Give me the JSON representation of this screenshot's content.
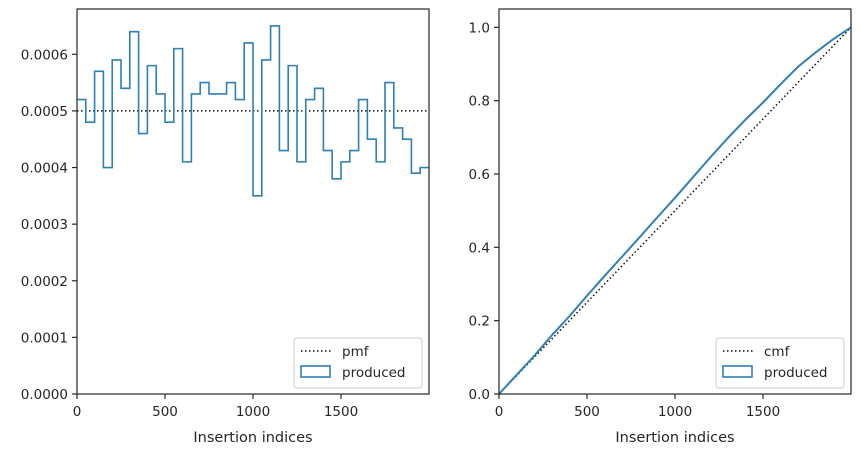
{
  "chart_data": [
    {
      "type": "step",
      "xlabel": "Insertion indices",
      "ylabel": "",
      "xlim": [
        0,
        2000
      ],
      "ylim": [
        0,
        0.00068
      ],
      "x_ticks": [
        0,
        500,
        1000,
        1500
      ],
      "y_ticks": [
        0,
        0.0001,
        0.0002,
        0.0003,
        0.0004,
        0.0005,
        0.0006
      ],
      "y_tick_labels": [
        "0.0000",
        "0.0001",
        "0.0002",
        "0.0003",
        "0.0004",
        "0.0005",
        "0.0006"
      ],
      "legend_position": "lower-right",
      "grid": false,
      "series": [
        {
          "name": "pmf",
          "kind": "hline",
          "y": 0.0005,
          "color": "#111111",
          "style": "dotted"
        },
        {
          "name": "produced",
          "kind": "histogram-step",
          "color": "#2f7fb8",
          "bin_edges": [
            0,
            50,
            100,
            150,
            200,
            250,
            300,
            350,
            400,
            450,
            500,
            550,
            600,
            650,
            700,
            750,
            800,
            850,
            900,
            950,
            1000,
            1050,
            1100,
            1150,
            1200,
            1250,
            1300,
            1350,
            1400,
            1450,
            1500,
            1550,
            1600,
            1650,
            1700,
            1750,
            1800,
            1850,
            1900,
            1950,
            2000
          ],
          "values": [
            0.00052,
            0.00048,
            0.00057,
            0.0004,
            0.00059,
            0.00054,
            0.00064,
            0.00046,
            0.00058,
            0.00053,
            0.00048,
            0.00061,
            0.00041,
            0.00053,
            0.00055,
            0.00053,
            0.00053,
            0.00055,
            0.00052,
            0.00062,
            0.00035,
            0.00059,
            0.00065,
            0.00043,
            0.00058,
            0.00041,
            0.00052,
            0.00054,
            0.00043,
            0.00038,
            0.00041,
            0.00043,
            0.00052,
            0.00045,
            0.00041,
            0.00055,
            0.00047,
            0.00045,
            0.00039,
            0.0004
          ]
        }
      ]
    },
    {
      "type": "line",
      "xlabel": "Insertion indices",
      "ylabel": "",
      "xlim": [
        0,
        2000
      ],
      "ylim": [
        0,
        1.05
      ],
      "x_ticks": [
        0,
        500,
        1000,
        1500
      ],
      "y_ticks": [
        0,
        0.2,
        0.4,
        0.6,
        0.8,
        1.0
      ],
      "y_tick_labels": [
        "0.0",
        "0.2",
        "0.4",
        "0.6",
        "0.8",
        "1.0"
      ],
      "legend_position": "lower-right",
      "grid": false,
      "series": [
        {
          "name": "cmf",
          "kind": "line",
          "x": [
            0,
            2000
          ],
          "y": [
            0,
            1.0
          ],
          "color": "#111111",
          "style": "dotted"
        },
        {
          "name": "produced",
          "kind": "line",
          "color": "#2f7fb8",
          "x": [
            0,
            100,
            200,
            300,
            400,
            500,
            600,
            700,
            800,
            900,
            1000,
            1100,
            1200,
            1300,
            1400,
            1500,
            1600,
            1700,
            1800,
            1900,
            2000
          ],
          "y": [
            0,
            0.052,
            0.104,
            0.16,
            0.212,
            0.268,
            0.322,
            0.375,
            0.428,
            0.482,
            0.535,
            0.59,
            0.645,
            0.698,
            0.748,
            0.795,
            0.845,
            0.893,
            0.932,
            0.968,
            1.0
          ]
        }
      ]
    }
  ]
}
